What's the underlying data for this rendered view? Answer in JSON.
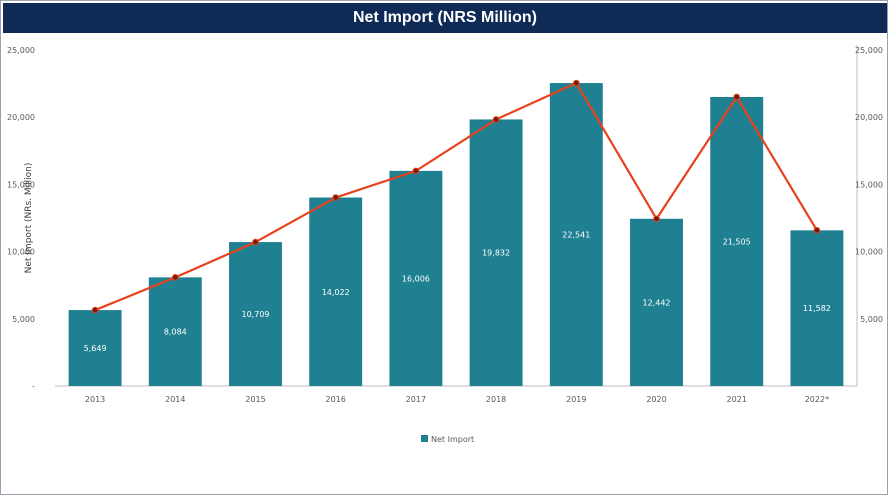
{
  "chart_data": {
    "type": "bar",
    "title": "Net Import (NRS Million)",
    "ylabel": "Net Import (NRs. Million)",
    "categories": [
      "2013",
      "2014",
      "2015",
      "2016",
      "2017",
      "2018",
      "2019",
      "2020",
      "2021",
      "2022*"
    ],
    "value_labels": [
      "5,649",
      "8,084",
      "10,709",
      "14,022",
      "16,006",
      "19,832",
      "22,541",
      "12,442",
      "21,505",
      "11,582"
    ],
    "series": [
      {
        "name": "Net Import",
        "type": "bar",
        "color": "#1f8092",
        "values": [
          5649,
          8084,
          10709,
          14022,
          16006,
          19832,
          22541,
          12442,
          21505,
          11582
        ]
      },
      {
        "type": "line",
        "color": "#e8411b",
        "values": [
          5649,
          8084,
          10709,
          14022,
          16006,
          19832,
          22541,
          12442,
          21505,
          11582
        ]
      }
    ],
    "ylim": [
      0,
      25000
    ],
    "y_ticks": [
      "-",
      "5,000",
      "10,000",
      "15,000",
      "20,000",
      "25,000"
    ],
    "secondary_y_ticks": [
      "",
      "5,000",
      "10,000",
      "15,000",
      "20,000",
      "25,000"
    ],
    "legend_position": "bottom",
    "grid": false
  }
}
